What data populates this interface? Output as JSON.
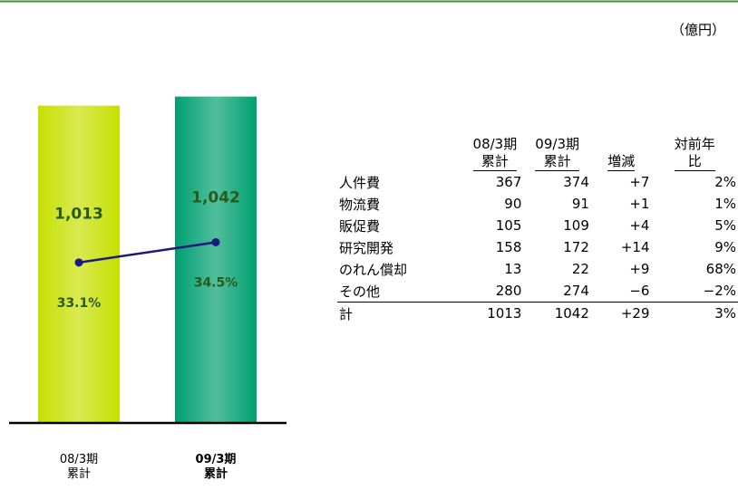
{
  "chart_data": {
    "type": "bar",
    "unit": "（億円）",
    "categories": [
      "08/3期\n累計",
      "09/3期\n累計"
    ],
    "ylim": [
      0,
      1200
    ],
    "y2lim": [
      22,
      48
    ],
    "series": [
      {
        "type": "bar",
        "values": [
          1013,
          1042
        ],
        "value_labels": [
          "1,013",
          "1,042"
        ],
        "colors": [
          "#c6e000",
          "#00a070"
        ]
      },
      {
        "type": "line",
        "axis": "y2",
        "values": [
          33.1,
          34.5
        ],
        "value_labels": [
          "33.1%",
          "34.5%"
        ],
        "color": "#1a1a80"
      }
    ]
  },
  "table": {
    "header": [
      "08/3期\n累計",
      "09/3期\n累計",
      "増減",
      "対前年\n比"
    ],
    "rows": [
      [
        "人件費",
        367,
        374,
        "+7",
        "2%"
      ],
      [
        "物流費",
        90,
        91,
        "+1",
        "1%"
      ],
      [
        "販促費",
        105,
        109,
        "+4",
        "5%"
      ],
      [
        "研究開発",
        158,
        172,
        "+14",
        "9%"
      ],
      [
        "のれん償却",
        13,
        22,
        "+9",
        "68%"
      ],
      [
        "その他",
        280,
        274,
        "−6",
        "−2%"
      ],
      [
        "計",
        1013,
        1042,
        "+29",
        "3%"
      ]
    ]
  }
}
